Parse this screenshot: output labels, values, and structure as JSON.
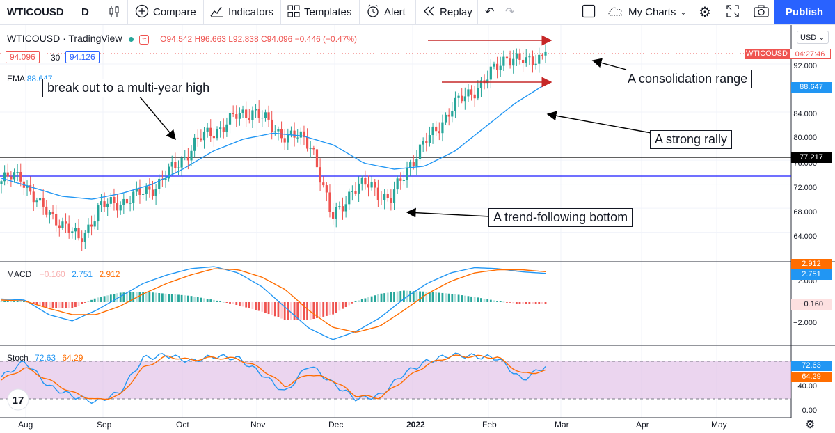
{
  "toolbar": {
    "symbol": "WTICOUSD",
    "interval": "D",
    "compare": "Compare",
    "indicators": "Indicators",
    "templates": "Templates",
    "alert": "Alert",
    "replay": "Replay",
    "my_charts": "My Charts",
    "publish": "Publish"
  },
  "legend": {
    "title": "WTICOUSD · TradingView",
    "ohlc": "O94.542 H96.663 L92.838 C94.096 −0.446 (−0.47%)",
    "sell_price": "94.096",
    "spread": "30",
    "buy_price": "94.126",
    "ema_label": "EMA",
    "ema_value": "88.647"
  },
  "currency": "USD",
  "annotations": {
    "breakout": "break out to a multi-year high",
    "consolidation": "A consolidation range",
    "rally": "A strong rally",
    "bottom": "A trend-following bottom"
  },
  "price_axis": {
    "ticks": [
      "92.000",
      "88.000",
      "84.000",
      "80.000",
      "76.000",
      "72.000",
      "68.000",
      "64.000"
    ],
    "symbol_tag": "WTICOUSD",
    "countdown": "04:27:46",
    "ema_tag": "88.647",
    "hline_tag": "77.217"
  },
  "macd": {
    "label": "MACD",
    "hist": "−0.160",
    "macd": "2.751",
    "signal": "2.912",
    "ticks": [
      "2.000",
      "−2.000"
    ],
    "tag_signal": "2.912",
    "tag_macd": "2.751",
    "tag_hist": "−0.160"
  },
  "stoch": {
    "label": "Stoch",
    "k": "72.63",
    "d": "64.29",
    "ticks": [
      "40.00",
      "0.00"
    ],
    "tag_k": "72.63",
    "tag_d": "64.29"
  },
  "time_axis": [
    "Aug",
    "Sep",
    "Oct",
    "Nov",
    "Dec",
    "2022",
    "Feb",
    "Mar",
    "Apr",
    "May"
  ],
  "colors": {
    "up": "#26a69a",
    "down": "#ef5350",
    "ema": "#2196f3",
    "macd_line": "#2196f3",
    "signal_line": "#ff6d00",
    "stoch_k": "#2196f3",
    "stoch_d": "#ff6d00",
    "stoch_band": "#e1bee7",
    "annotation_arrow": "#c62828",
    "hline_black": "#000000",
    "hline_blue": "#1a1aff",
    "accent": "#2962ff"
  },
  "chart_data": {
    "type": "candlestick",
    "symbol": "WTICOUSD",
    "ylim": [
      62,
      97
    ],
    "x": [
      "Aug",
      "Sep",
      "Oct",
      "Nov",
      "Dec",
      "2022",
      "Feb",
      "Mar",
      "Apr",
      "May"
    ],
    "close_path": [
      72.5,
      73.5,
      68.0,
      66.0,
      62.5,
      68.0,
      69.0,
      70.0,
      72.0,
      75.0,
      79.0,
      81.0,
      83.0,
      84.5,
      81.0,
      80.0,
      78.5,
      66.0,
      71.0,
      72.0,
      69.0,
      75.5,
      79.5,
      84.0,
      87.0,
      89.5,
      93.5,
      92.0,
      94.096
    ],
    "ema_path": [
      73.0,
      71.5,
      70.0,
      69.5,
      70.5,
      72.0,
      74.5,
      77.5,
      79.5,
      80.5,
      80.0,
      78.5,
      75.5,
      74.5,
      75.0,
      77.5,
      81.5,
      85.5,
      88.647
    ],
    "hlines": [
      77.217,
      74.5
    ],
    "last_close": 94.096,
    "ema_last": 88.647
  }
}
